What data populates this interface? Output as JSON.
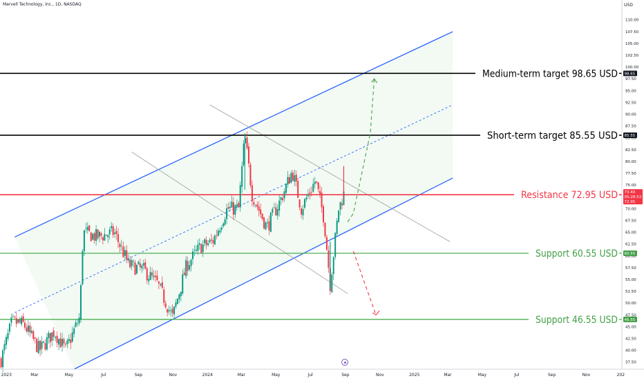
{
  "header": {
    "symbol_title": "Marvell Technology, Inc., 1D, NASDAQ",
    "currency": "USD"
  },
  "colors": {
    "bull_candle": "#089981",
    "bear_candle": "#f23645",
    "channel": "#2962ff",
    "channel_fill": "#e8f5e9",
    "target_line": "#000000",
    "resistance": "#f23645",
    "support": "#4caf50",
    "wedge": "#9e9e9e"
  },
  "chart_data": {
    "type": "candlestick",
    "title": "Marvell Technology, Inc., 1D, NASDAQ",
    "ylabel": "USD",
    "ylim": [
      36,
      112
    ],
    "y_ticks": [
      37.5,
      40,
      42.5,
      45,
      47.5,
      50,
      52.5,
      55,
      57.5,
      60,
      62.5,
      65,
      67.5,
      70,
      72.5,
      75,
      77.5,
      80,
      82.5,
      85,
      87.5,
      90,
      92.5,
      95,
      97.5,
      100,
      102.5,
      105,
      107.5,
      110
    ],
    "y_tick_labels": [
      "37.50",
      "40.00",
      "42.50",
      "45.00",
      "47.50",
      "50.00",
      "52.50",
      "55.00",
      "57.50",
      "60.00",
      "62.50",
      "65.00",
      "67.50",
      "70.00",
      "72.50",
      "75.00",
      "77.50",
      "80.00",
      "82.50",
      "85.00",
      "87.50",
      "90.00",
      "92.50",
      "95.00",
      "97.50",
      "100.00",
      "102.50",
      "105.00",
      "107.50",
      "110.00"
    ],
    "x_ticks": [
      "2023",
      "Mar",
      "May",
      "Jul",
      "Sep",
      "Nov",
      "2024",
      "Mar",
      "May",
      "Jul",
      "Sep",
      "Nov",
      "2025",
      "Mar",
      "May",
      "Jul",
      "Sep",
      "Nov",
      "202"
    ],
    "xlim": [
      "2022-12-30",
      "2026-01-03"
    ],
    "x_tick_dates": [
      "2023-01-01",
      "2023-03-01",
      "2023-05-01",
      "2023-07-01",
      "2023-09-01",
      "2023-11-01",
      "2024-01-01",
      "2024-03-01",
      "2024-05-01",
      "2024-07-01",
      "2024-09-01",
      "2024-11-01",
      "2025-01-01",
      "2025-03-01",
      "2025-05-01",
      "2025-07-01",
      "2025-09-01",
      "2025-11-01",
      "2026-01-01"
    ],
    "price_path": [
      {
        "date": "2023-01-01",
        "close": 38
      },
      {
        "date": "2023-01-20",
        "close": 46
      },
      {
        "date": "2023-02-10",
        "close": 45.5
      },
      {
        "date": "2023-03-10",
        "close": 40
      },
      {
        "date": "2023-04-05",
        "close": 44
      },
      {
        "date": "2023-04-25",
        "close": 40
      },
      {
        "date": "2023-05-20",
        "close": 47
      },
      {
        "date": "2023-05-26",
        "close": 65
      },
      {
        "date": "2023-06-20",
        "close": 64
      },
      {
        "date": "2023-07-20",
        "close": 65
      },
      {
        "date": "2023-08-15",
        "close": 58
      },
      {
        "date": "2023-09-10",
        "close": 57
      },
      {
        "date": "2023-10-05",
        "close": 54
      },
      {
        "date": "2023-10-31",
        "close": 47
      },
      {
        "date": "2023-11-25",
        "close": 58
      },
      {
        "date": "2023-12-20",
        "close": 62
      },
      {
        "date": "2024-01-10",
        "close": 63
      },
      {
        "date": "2024-02-05",
        "close": 70
      },
      {
        "date": "2024-02-25",
        "close": 70
      },
      {
        "date": "2024-03-07",
        "close": 85.5
      },
      {
        "date": "2024-03-20",
        "close": 73
      },
      {
        "date": "2024-04-15",
        "close": 66
      },
      {
        "date": "2024-05-10",
        "close": 72
      },
      {
        "date": "2024-05-30",
        "close": 78
      },
      {
        "date": "2024-06-15",
        "close": 70
      },
      {
        "date": "2024-07-10",
        "close": 76
      },
      {
        "date": "2024-07-25",
        "close": 68
      },
      {
        "date": "2024-08-05",
        "close": 54
      },
      {
        "date": "2024-08-20",
        "close": 70
      },
      {
        "date": "2024-08-30",
        "close": 73.4
      }
    ],
    "annotations": {
      "medium_target": {
        "label": "Medium-term target 98.65 USD",
        "value": 98.65,
        "badge": "98.65"
      },
      "short_target": {
        "label": "Short-term target 85.55 USD",
        "value": 85.55,
        "badge": "85.55"
      },
      "resistance": {
        "label": "Resistance 72.95 USD",
        "value": 72.95,
        "badge": "72.95"
      },
      "support_1": {
        "label": "Support 60.55 USD",
        "value": 60.55,
        "badge": "60.55"
      },
      "support_2": {
        "label": "Support 46.55 USD",
        "value": 46.55,
        "badge": "46.55"
      }
    },
    "last_price": {
      "value": 73.4,
      "badge": "73.40",
      "countdown": "05:28:53"
    },
    "channel": {
      "lower_start": {
        "date": "2023-05-10",
        "value": 36
      },
      "lower_end": {
        "date": "2025-03-10",
        "value": 76.5
      },
      "upper_start": {
        "date": "2023-01-25",
        "value": 64
      },
      "upper_end": {
        "date": "2025-03-10",
        "value": 107.5
      },
      "mid_start": {
        "date": "2023-01-25",
        "value": 48
      },
      "mid_end": {
        "date": "2025-03-10",
        "value": 92
      }
    },
    "wedge": {
      "upper_start": {
        "date": "2024-01-05",
        "value": 92
      },
      "upper_end": {
        "date": "2025-03-05",
        "value": 63
      },
      "lower_start": {
        "date": "2023-08-20",
        "value": 82
      },
      "lower_end": {
        "date": "2024-09-05",
        "value": 52
      }
    },
    "projections": {
      "bullish": [
        {
          "date": "2024-09-05",
          "value": 67.2
        },
        {
          "date": "2024-09-15",
          "value": 69
        },
        {
          "date": "2024-10-15",
          "value": 86
        },
        {
          "date": "2024-10-22",
          "value": 97.5
        }
      ],
      "bearish": [
        {
          "date": "2024-09-15",
          "value": 61
        },
        {
          "date": "2024-10-25",
          "value": 47.5
        }
      ]
    }
  }
}
